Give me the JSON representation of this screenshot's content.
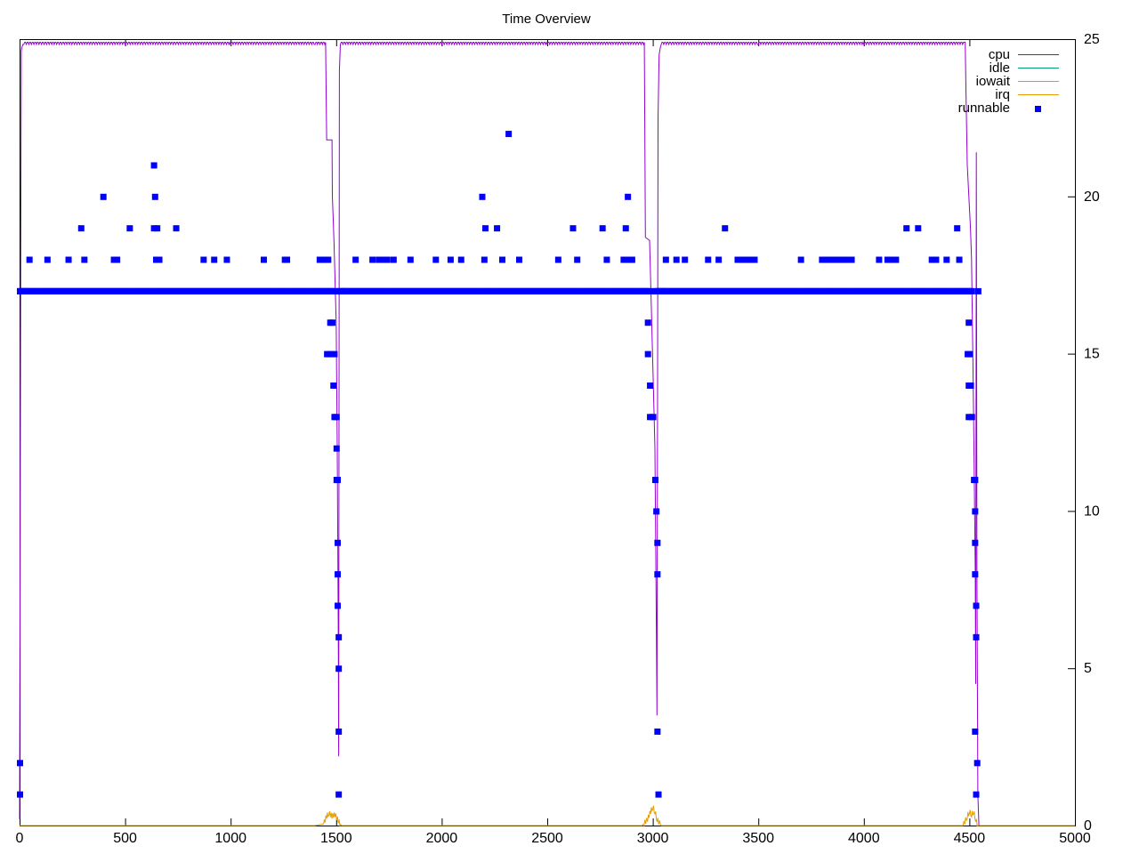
{
  "chart_data": {
    "type": "line",
    "title": "Time Overview",
    "xlabel": "",
    "ylabel": "",
    "xlim": [
      0,
      5000
    ],
    "ylim": [
      0,
      25
    ],
    "x_ticks": [
      0,
      500,
      1000,
      1500,
      2000,
      2500,
      3000,
      3500,
      4000,
      4500,
      5000
    ],
    "y2_ticks": [
      0,
      5,
      10,
      15,
      20,
      25
    ],
    "y_axis_side": "right",
    "grid": false,
    "legend_position": "top-right",
    "series_colors": {
      "cpu": "#9400d3",
      "idle": "#009e73",
      "iowait": "#56b4e9",
      "irq": "#e69f00",
      "runnable": "#0000ff"
    },
    "series": [
      {
        "name": "cpu",
        "style": "line",
        "points": [
          [
            0,
            0.2
          ],
          [
            8,
            24.7
          ],
          [
            20,
            24.9
          ],
          [
            500,
            24.9
          ],
          [
            1000,
            24.9
          ],
          [
            1400,
            24.9
          ],
          [
            1450,
            24.9
          ],
          [
            1455,
            21.8
          ],
          [
            1480,
            21.8
          ],
          [
            1482,
            20.0
          ],
          [
            1490,
            18.5
          ],
          [
            1500,
            16.0
          ],
          [
            1505,
            12.0
          ],
          [
            1510,
            6.0
          ],
          [
            1512,
            2.2
          ],
          [
            1515,
            24.0
          ],
          [
            1520,
            24.9
          ],
          [
            2000,
            24.9
          ],
          [
            2500,
            24.9
          ],
          [
            2960,
            24.9
          ],
          [
            2965,
            18.7
          ],
          [
            2985,
            18.6
          ],
          [
            2995,
            16.0
          ],
          [
            3010,
            12.0
          ],
          [
            3020,
            3.5
          ],
          [
            3022,
            11.0
          ],
          [
            3025,
            22.5
          ],
          [
            3030,
            24.5
          ],
          [
            3040,
            24.9
          ],
          [
            3500,
            24.9
          ],
          [
            4000,
            24.9
          ],
          [
            4480,
            24.9
          ],
          [
            4490,
            21.0
          ],
          [
            4505,
            19.0
          ],
          [
            4510,
            18.0
          ],
          [
            4520,
            13.0
          ],
          [
            4528,
            8.0
          ],
          [
            4530,
            4.5
          ],
          [
            4533,
            21.4
          ],
          [
            4536,
            8.0
          ],
          [
            4540,
            1.0
          ],
          [
            4545,
            0.0
          ]
        ]
      },
      {
        "name": "idle",
        "style": "line",
        "points": []
      },
      {
        "name": "iowait",
        "style": "line",
        "points": []
      },
      {
        "name": "irq",
        "style": "line",
        "points": [
          [
            0,
            0.0
          ],
          [
            1400,
            0.0
          ],
          [
            1440,
            0.05
          ],
          [
            1455,
            0.3
          ],
          [
            1465,
            0.4
          ],
          [
            1480,
            0.3
          ],
          [
            1495,
            0.35
          ],
          [
            1510,
            0.15
          ],
          [
            1525,
            0.0
          ],
          [
            2950,
            0.0
          ],
          [
            2975,
            0.2
          ],
          [
            2990,
            0.45
          ],
          [
            3000,
            0.6
          ],
          [
            3010,
            0.45
          ],
          [
            3020,
            0.2
          ],
          [
            3040,
            0.0
          ],
          [
            4470,
            0.0
          ],
          [
            4490,
            0.3
          ],
          [
            4500,
            0.45
          ],
          [
            4510,
            0.35
          ],
          [
            4520,
            0.45
          ],
          [
            4530,
            0.2
          ],
          [
            4540,
            0.0
          ],
          [
            5000,
            0.0
          ]
        ]
      },
      {
        "name": "runnable",
        "style": "points",
        "baseline": {
          "value": 17,
          "segments": [
            [
              0,
              1495
            ],
            [
              1515,
              2985
            ],
            [
              3010,
              4510
            ]
          ]
        },
        "points": [
          [
            0,
            1
          ],
          [
            0,
            2
          ],
          [
            0,
            17
          ],
          [
            45,
            18
          ],
          [
            130,
            18
          ],
          [
            230,
            18
          ],
          [
            290,
            19
          ],
          [
            305,
            18
          ],
          [
            395,
            20
          ],
          [
            445,
            18
          ],
          [
            460,
            18
          ],
          [
            520,
            19
          ],
          [
            635,
            19
          ],
          [
            635,
            21
          ],
          [
            640,
            20
          ],
          [
            645,
            18
          ],
          [
            650,
            19
          ],
          [
            660,
            18
          ],
          [
            740,
            19
          ],
          [
            870,
            18
          ],
          [
            920,
            18
          ],
          [
            980,
            18
          ],
          [
            1155,
            18
          ],
          [
            1255,
            18
          ],
          [
            1265,
            18
          ],
          [
            1420,
            18
          ],
          [
            1440,
            18
          ],
          [
            1460,
            18
          ],
          [
            1470,
            16
          ],
          [
            1480,
            16
          ],
          [
            1455,
            15
          ],
          [
            1470,
            15
          ],
          [
            1490,
            15
          ],
          [
            1485,
            14
          ],
          [
            1490,
            13
          ],
          [
            1500,
            13
          ],
          [
            1500,
            12
          ],
          [
            1500,
            11
          ],
          [
            1505,
            11
          ],
          [
            1505,
            9
          ],
          [
            1505,
            8
          ],
          [
            1505,
            7
          ],
          [
            1510,
            6
          ],
          [
            1510,
            5
          ],
          [
            1510,
            3
          ],
          [
            1510,
            1
          ],
          [
            1520,
            17
          ],
          [
            1590,
            18
          ],
          [
            1670,
            18
          ],
          [
            1700,
            18
          ],
          [
            1720,
            18
          ],
          [
            1740,
            18
          ],
          [
            1770,
            18
          ],
          [
            1850,
            18
          ],
          [
            1970,
            18
          ],
          [
            2040,
            18
          ],
          [
            2090,
            18
          ],
          [
            2190,
            20
          ],
          [
            2200,
            18
          ],
          [
            2205,
            19
          ],
          [
            2260,
            19
          ],
          [
            2285,
            18
          ],
          [
            2315,
            22
          ],
          [
            2365,
            18
          ],
          [
            2550,
            18
          ],
          [
            2620,
            19
          ],
          [
            2640,
            18
          ],
          [
            2760,
            19
          ],
          [
            2780,
            18
          ],
          [
            2860,
            18
          ],
          [
            2870,
            19
          ],
          [
            2880,
            20
          ],
          [
            2885,
            18
          ],
          [
            2900,
            18
          ],
          [
            2975,
            16
          ],
          [
            2975,
            15
          ],
          [
            2985,
            14
          ],
          [
            2985,
            13
          ],
          [
            3000,
            13
          ],
          [
            3010,
            11
          ],
          [
            3015,
            10
          ],
          [
            3020,
            9
          ],
          [
            3020,
            8
          ],
          [
            3020,
            3
          ],
          [
            3025,
            1
          ],
          [
            3040,
            17
          ],
          [
            3060,
            18
          ],
          [
            3110,
            18
          ],
          [
            3150,
            18
          ],
          [
            3260,
            18
          ],
          [
            3310,
            18
          ],
          [
            3340,
            19
          ],
          [
            3400,
            18
          ],
          [
            3420,
            18
          ],
          [
            3440,
            18
          ],
          [
            3460,
            18
          ],
          [
            3480,
            18
          ],
          [
            3700,
            18
          ],
          [
            3800,
            18
          ],
          [
            3820,
            18
          ],
          [
            3840,
            18
          ],
          [
            3860,
            18
          ],
          [
            3880,
            18
          ],
          [
            3900,
            18
          ],
          [
            3920,
            18
          ],
          [
            3940,
            18
          ],
          [
            4070,
            18
          ],
          [
            4110,
            18
          ],
          [
            4130,
            18
          ],
          [
            4150,
            18
          ],
          [
            4200,
            19
          ],
          [
            4255,
            19
          ],
          [
            4320,
            18
          ],
          [
            4340,
            18
          ],
          [
            4390,
            18
          ],
          [
            4440,
            19
          ],
          [
            4450,
            18
          ],
          [
            4495,
            16
          ],
          [
            4490,
            15
          ],
          [
            4500,
            15
          ],
          [
            4495,
            14
          ],
          [
            4505,
            14
          ],
          [
            4495,
            13
          ],
          [
            4510,
            13
          ],
          [
            4520,
            11
          ],
          [
            4525,
            11
          ],
          [
            4525,
            10
          ],
          [
            4525,
            9
          ],
          [
            4525,
            8
          ],
          [
            4530,
            7
          ],
          [
            4530,
            6
          ],
          [
            4525,
            3
          ],
          [
            4535,
            2
          ],
          [
            4530,
            1
          ],
          [
            4540,
            17
          ]
        ]
      }
    ]
  }
}
